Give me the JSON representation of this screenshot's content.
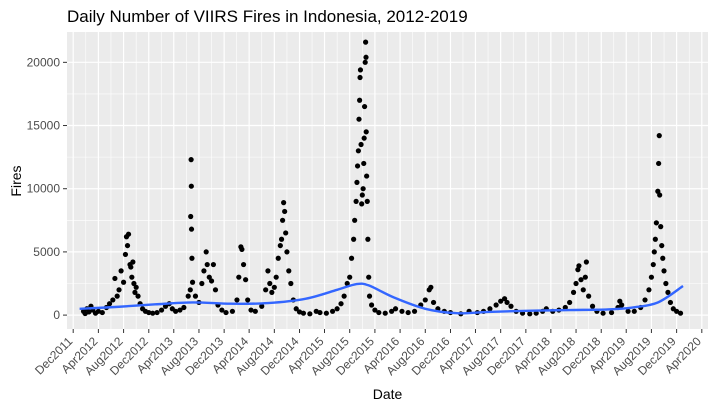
{
  "chart_data": {
    "type": "scatter",
    "title": "Daily Number of VIIRS Fires in Indonesia, 2012-2019",
    "xlabel": "Date",
    "ylabel": "Fires",
    "x_is_date": true,
    "xlim": [
      "2011-11-01",
      "2020-05-01"
    ],
    "ylim": [
      -1100,
      22400
    ],
    "x_ticks": [
      "Dec2011",
      "Apr2012",
      "Aug2012",
      "Dec2012",
      "Apr2013",
      "Aug2013",
      "Dec2013",
      "Apr2014",
      "Aug2014",
      "Dec2014",
      "Apr2015",
      "Aug2015",
      "Dec2015",
      "Apr2016",
      "Aug2016",
      "Dec2016",
      "Apr2017",
      "Aug2017",
      "Dec2017",
      "Apr2018",
      "Aug2018",
      "Dec2018",
      "Apr2019",
      "Aug2019",
      "Dec2019",
      "Apr2020"
    ],
    "y_ticks": [
      0,
      5000,
      10000,
      15000,
      20000
    ],
    "grid": true,
    "legend": "none",
    "colors": {
      "panel": "#ebebeb",
      "grid": "#ffffff",
      "points": "#000000",
      "smooth": "#3366ff"
    },
    "series": [
      {
        "kind": "points",
        "points": [
          [
            "2012-01-20",
            300
          ],
          [
            "2012-01-28",
            120
          ],
          [
            "2012-02-05",
            500
          ],
          [
            "2012-02-15",
            250
          ],
          [
            "2012-02-25",
            700
          ],
          [
            "2012-03-05",
            400
          ],
          [
            "2012-03-18",
            150
          ],
          [
            "2012-04-01",
            300
          ],
          [
            "2012-04-20",
            200
          ],
          [
            "2012-05-10",
            600
          ],
          [
            "2012-05-25",
            900
          ],
          [
            "2012-06-10",
            1200
          ],
          [
            "2012-06-20",
            2900
          ],
          [
            "2012-07-01",
            1500
          ],
          [
            "2012-07-10",
            2000
          ],
          [
            "2012-07-20",
            3500
          ],
          [
            "2012-08-01",
            2600
          ],
          [
            "2012-08-10",
            4800
          ],
          [
            "2012-08-15",
            6200
          ],
          [
            "2012-08-20",
            5500
          ],
          [
            "2012-08-25",
            6400
          ],
          [
            "2012-09-01",
            4000
          ],
          [
            "2012-09-05",
            3800
          ],
          [
            "2012-09-10",
            3000
          ],
          [
            "2012-09-15",
            4200
          ],
          [
            "2012-09-20",
            2500
          ],
          [
            "2012-09-25",
            1800
          ],
          [
            "2012-10-01",
            2200
          ],
          [
            "2012-10-10",
            1500
          ],
          [
            "2012-10-20",
            900
          ],
          [
            "2012-11-01",
            500
          ],
          [
            "2012-11-15",
            300
          ],
          [
            "2012-12-01",
            200
          ],
          [
            "2012-12-20",
            150
          ],
          [
            "2013-01-10",
            200
          ],
          [
            "2013-02-01",
            400
          ],
          [
            "2013-02-20",
            700
          ],
          [
            "2013-03-10",
            900
          ],
          [
            "2013-03-25",
            500
          ],
          [
            "2013-04-10",
            300
          ],
          [
            "2013-05-01",
            400
          ],
          [
            "2013-05-20",
            600
          ],
          [
            "2013-06-10",
            1500
          ],
          [
            "2013-06-20",
            2000
          ],
          [
            "2013-06-22",
            7800
          ],
          [
            "2013-06-24",
            12300
          ],
          [
            "2013-06-25",
            10200
          ],
          [
            "2013-06-26",
            6800
          ],
          [
            "2013-06-28",
            4500
          ],
          [
            "2013-07-01",
            2600
          ],
          [
            "2013-07-15",
            1500
          ],
          [
            "2013-08-01",
            1000
          ],
          [
            "2013-08-15",
            2500
          ],
          [
            "2013-08-25",
            3500
          ],
          [
            "2013-09-05",
            5000
          ],
          [
            "2013-09-10",
            4000
          ],
          [
            "2013-09-20",
            3000
          ],
          [
            "2013-10-01",
            2700
          ],
          [
            "2013-10-10",
            4000
          ],
          [
            "2013-10-20",
            2000
          ],
          [
            "2013-11-01",
            800
          ],
          [
            "2013-11-20",
            400
          ],
          [
            "2013-12-10",
            200
          ],
          [
            "2014-01-10",
            300
          ],
          [
            "2014-02-01",
            1200
          ],
          [
            "2014-02-10",
            3000
          ],
          [
            "2014-02-20",
            5400
          ],
          [
            "2014-02-25",
            5200
          ],
          [
            "2014-03-05",
            4000
          ],
          [
            "2014-03-15",
            2800
          ],
          [
            "2014-03-25",
            1200
          ],
          [
            "2014-04-10",
            400
          ],
          [
            "2014-05-01",
            300
          ],
          [
            "2014-06-01",
            700
          ],
          [
            "2014-06-20",
            2000
          ],
          [
            "2014-07-01",
            3500
          ],
          [
            "2014-07-10",
            2500
          ],
          [
            "2014-07-20",
            1800
          ],
          [
            "2014-08-01",
            2200
          ],
          [
            "2014-08-10",
            3000
          ],
          [
            "2014-08-20",
            4500
          ],
          [
            "2014-08-30",
            5500
          ],
          [
            "2014-09-05",
            6000
          ],
          [
            "2014-09-10",
            7500
          ],
          [
            "2014-09-15",
            8900
          ],
          [
            "2014-09-20",
            8200
          ],
          [
            "2014-09-25",
            6500
          ],
          [
            "2014-10-01",
            5000
          ],
          [
            "2014-10-10",
            3500
          ],
          [
            "2014-10-20",
            2500
          ],
          [
            "2014-11-01",
            1200
          ],
          [
            "2014-11-15",
            500
          ],
          [
            "2014-12-01",
            250
          ],
          [
            "2014-12-20",
            150
          ],
          [
            "2015-01-20",
            100
          ],
          [
            "2015-02-20",
            300
          ],
          [
            "2015-03-10",
            200
          ],
          [
            "2015-04-10",
            150
          ],
          [
            "2015-05-10",
            300
          ],
          [
            "2015-06-01",
            500
          ],
          [
            "2015-06-20",
            900
          ],
          [
            "2015-07-05",
            1500
          ],
          [
            "2015-07-20",
            2500
          ],
          [
            "2015-08-01",
            3000
          ],
          [
            "2015-08-10",
            4500
          ],
          [
            "2015-08-20",
            6000
          ],
          [
            "2015-08-25",
            7500
          ],
          [
            "2015-09-01",
            9000
          ],
          [
            "2015-09-05",
            10500
          ],
          [
            "2015-09-08",
            11800
          ],
          [
            "2015-09-12",
            13000
          ],
          [
            "2015-09-15",
            15500
          ],
          [
            "2015-09-18",
            17000
          ],
          [
            "2015-09-20",
            18800
          ],
          [
            "2015-09-22",
            19400
          ],
          [
            "2015-09-25",
            13500
          ],
          [
            "2015-09-28",
            8800
          ],
          [
            "2015-10-01",
            9500
          ],
          [
            "2015-10-05",
            10000
          ],
          [
            "2015-10-08",
            12000
          ],
          [
            "2015-10-10",
            14000
          ],
          [
            "2015-10-12",
            16500
          ],
          [
            "2015-10-15",
            20000
          ],
          [
            "2015-10-17",
            21600
          ],
          [
            "2015-10-19",
            20400
          ],
          [
            "2015-10-20",
            14500
          ],
          [
            "2015-10-22",
            11000
          ],
          [
            "2015-10-25",
            9000
          ],
          [
            "2015-10-28",
            6000
          ],
          [
            "2015-11-01",
            3000
          ],
          [
            "2015-11-05",
            1500
          ],
          [
            "2015-11-15",
            800
          ],
          [
            "2015-12-01",
            400
          ],
          [
            "2015-12-20",
            200
          ],
          [
            "2016-01-20",
            150
          ],
          [
            "2016-02-20",
            300
          ],
          [
            "2016-03-10",
            500
          ],
          [
            "2016-04-10",
            300
          ],
          [
            "2016-05-10",
            200
          ],
          [
            "2016-06-10",
            300
          ],
          [
            "2016-07-10",
            800
          ],
          [
            "2016-08-01",
            1200
          ],
          [
            "2016-08-20",
            2000
          ],
          [
            "2016-08-28",
            2200
          ],
          [
            "2016-09-10",
            1000
          ],
          [
            "2016-10-01",
            500
          ],
          [
            "2016-11-01",
            300
          ],
          [
            "2016-12-01",
            200
          ],
          [
            "2017-01-20",
            100
          ],
          [
            "2017-03-01",
            300
          ],
          [
            "2017-04-10",
            200
          ],
          [
            "2017-05-10",
            300
          ],
          [
            "2017-06-10",
            500
          ],
          [
            "2017-07-10",
            800
          ],
          [
            "2017-08-01",
            1100
          ],
          [
            "2017-08-20",
            1300
          ],
          [
            "2017-09-01",
            1000
          ],
          [
            "2017-09-20",
            700
          ],
          [
            "2017-10-15",
            300
          ],
          [
            "2017-11-15",
            150
          ],
          [
            "2017-12-20",
            100
          ],
          [
            "2018-01-20",
            150
          ],
          [
            "2018-02-20",
            300
          ],
          [
            "2018-03-10",
            500
          ],
          [
            "2018-04-10",
            300
          ],
          [
            "2018-05-10",
            400
          ],
          [
            "2018-06-10",
            600
          ],
          [
            "2018-07-01",
            1000
          ],
          [
            "2018-07-20",
            1800
          ],
          [
            "2018-08-01",
            2500
          ],
          [
            "2018-08-10",
            3600
          ],
          [
            "2018-08-15",
            3900
          ],
          [
            "2018-08-25",
            2800
          ],
          [
            "2018-09-05",
            2000
          ],
          [
            "2018-09-15",
            3000
          ],
          [
            "2018-09-20",
            4200
          ],
          [
            "2018-10-01",
            1500
          ],
          [
            "2018-10-20",
            700
          ],
          [
            "2018-11-10",
            300
          ],
          [
            "2018-12-10",
            150
          ],
          [
            "2019-01-20",
            200
          ],
          [
            "2019-02-20",
            600
          ],
          [
            "2019-03-01",
            1100
          ],
          [
            "2019-03-10",
            800
          ],
          [
            "2019-04-10",
            300
          ],
          [
            "2019-05-10",
            300
          ],
          [
            "2019-06-10",
            600
          ],
          [
            "2019-07-01",
            1200
          ],
          [
            "2019-07-20",
            2000
          ],
          [
            "2019-08-01",
            3000
          ],
          [
            "2019-08-10",
            4000
          ],
          [
            "2019-08-15",
            5000
          ],
          [
            "2019-08-20",
            6000
          ],
          [
            "2019-08-25",
            7300
          ],
          [
            "2019-09-01",
            9800
          ],
          [
            "2019-09-05",
            12000
          ],
          [
            "2019-09-08",
            14200
          ],
          [
            "2019-09-10",
            9500
          ],
          [
            "2019-09-15",
            7000
          ],
          [
            "2019-09-20",
            5500
          ],
          [
            "2019-09-25",
            4500
          ],
          [
            "2019-10-01",
            3500
          ],
          [
            "2019-10-10",
            2500
          ],
          [
            "2019-10-20",
            1800
          ],
          [
            "2019-11-01",
            1000
          ],
          [
            "2019-11-15",
            500
          ],
          [
            "2019-12-01",
            300
          ],
          [
            "2019-12-20",
            150
          ]
        ]
      },
      {
        "kind": "smooth",
        "points": [
          [
            "2012-01-01",
            500
          ],
          [
            "2012-07-01",
            650
          ],
          [
            "2013-01-01",
            850
          ],
          [
            "2013-07-01",
            1000
          ],
          [
            "2014-01-01",
            900
          ],
          [
            "2014-07-01",
            950
          ],
          [
            "2015-01-01",
            1300
          ],
          [
            "2015-06-01",
            2000
          ],
          [
            "2015-09-01",
            2450
          ],
          [
            "2015-11-01",
            2350
          ],
          [
            "2016-03-01",
            1400
          ],
          [
            "2016-08-01",
            500
          ],
          [
            "2017-01-01",
            150
          ],
          [
            "2017-06-01",
            250
          ],
          [
            "2018-01-01",
            350
          ],
          [
            "2018-07-01",
            400
          ],
          [
            "2019-01-01",
            450
          ],
          [
            "2019-05-01",
            600
          ],
          [
            "2019-09-01",
            1000
          ],
          [
            "2020-01-01",
            2300
          ]
        ]
      }
    ]
  }
}
